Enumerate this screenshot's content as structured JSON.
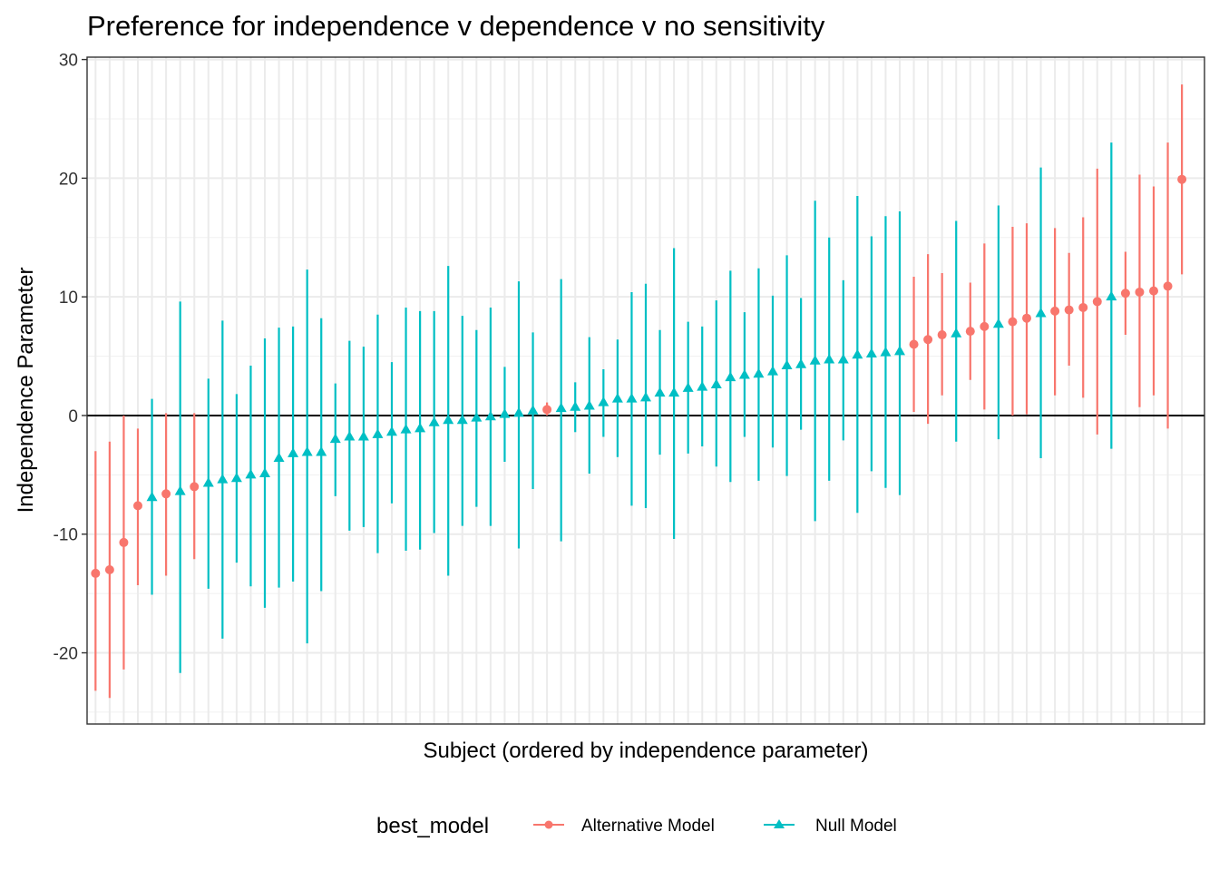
{
  "chart_data": {
    "type": "scatter",
    "title": "Preference for independence v dependence v no sensitivity",
    "xlabel": "Subject (ordered by independence parameter)",
    "ylabel": "Independence Parameter",
    "ylim": [
      -26,
      30.2
    ],
    "yticks": [
      -20,
      -10,
      0,
      10,
      20,
      30
    ],
    "ytick_labels": [
      "-20",
      "-10",
      "0",
      "10",
      "20",
      "30"
    ],
    "reference_line_y": 0,
    "grid": true,
    "legend": {
      "title": "best_model",
      "position": "bottom",
      "entries": [
        {
          "name": "Alternative Model",
          "color": "#F8766D",
          "shape": "circle"
        },
        {
          "name": "Null Model",
          "color": "#00BFC4",
          "shape": "triangle"
        }
      ]
    },
    "points": [
      {
        "subject": 1,
        "y": -13.3,
        "lo": -23.2,
        "hi": -3.0,
        "model": "Alternative Model"
      },
      {
        "subject": 2,
        "y": -13.0,
        "lo": -23.8,
        "hi": -2.2,
        "model": "Alternative Model"
      },
      {
        "subject": 3,
        "y": -10.7,
        "lo": -21.4,
        "hi": 0.0,
        "model": "Alternative Model"
      },
      {
        "subject": 4,
        "y": -7.6,
        "lo": -14.3,
        "hi": -1.1,
        "model": "Alternative Model"
      },
      {
        "subject": 5,
        "y": -6.9,
        "lo": -15.1,
        "hi": 1.4,
        "model": "Null Model"
      },
      {
        "subject": 6,
        "y": -6.6,
        "lo": -13.5,
        "hi": 0.2,
        "model": "Alternative Model"
      },
      {
        "subject": 7,
        "y": -6.4,
        "lo": -21.7,
        "hi": 9.6,
        "model": "Null Model"
      },
      {
        "subject": 8,
        "y": -6.0,
        "lo": -12.1,
        "hi": 0.2,
        "model": "Alternative Model"
      },
      {
        "subject": 9,
        "y": -5.7,
        "lo": -14.6,
        "hi": 3.1,
        "model": "Null Model"
      },
      {
        "subject": 10,
        "y": -5.4,
        "lo": -18.8,
        "hi": 8.0,
        "model": "Null Model"
      },
      {
        "subject": 11,
        "y": -5.3,
        "lo": -12.4,
        "hi": 1.8,
        "model": "Null Model"
      },
      {
        "subject": 12,
        "y": -5.0,
        "lo": -14.4,
        "hi": 4.2,
        "model": "Null Model"
      },
      {
        "subject": 13,
        "y": -4.9,
        "lo": -16.2,
        "hi": 6.5,
        "model": "Null Model"
      },
      {
        "subject": 14,
        "y": -3.6,
        "lo": -14.5,
        "hi": 7.4,
        "model": "Null Model"
      },
      {
        "subject": 15,
        "y": -3.2,
        "lo": -14.0,
        "hi": 7.5,
        "model": "Null Model"
      },
      {
        "subject": 16,
        "y": -3.1,
        "lo": -19.2,
        "hi": 12.3,
        "model": "Null Model"
      },
      {
        "subject": 17,
        "y": -3.1,
        "lo": -14.8,
        "hi": 8.2,
        "model": "Null Model"
      },
      {
        "subject": 18,
        "y": -2.0,
        "lo": -6.8,
        "hi": 2.7,
        "model": "Null Model"
      },
      {
        "subject": 19,
        "y": -1.8,
        "lo": -9.7,
        "hi": 6.3,
        "model": "Null Model"
      },
      {
        "subject": 20,
        "y": -1.8,
        "lo": -9.4,
        "hi": 5.8,
        "model": "Null Model"
      },
      {
        "subject": 21,
        "y": -1.6,
        "lo": -11.6,
        "hi": 8.5,
        "model": "Null Model"
      },
      {
        "subject": 22,
        "y": -1.4,
        "lo": -7.4,
        "hi": 4.5,
        "model": "Null Model"
      },
      {
        "subject": 23,
        "y": -1.2,
        "lo": -11.4,
        "hi": 9.1,
        "model": "Null Model"
      },
      {
        "subject": 24,
        "y": -1.1,
        "lo": -11.3,
        "hi": 8.8,
        "model": "Null Model"
      },
      {
        "subject": 25,
        "y": -0.6,
        "lo": -9.9,
        "hi": 8.8,
        "model": "Null Model"
      },
      {
        "subject": 26,
        "y": -0.4,
        "lo": -13.5,
        "hi": 12.6,
        "model": "Null Model"
      },
      {
        "subject": 27,
        "y": -0.4,
        "lo": -9.3,
        "hi": 8.4,
        "model": "Null Model"
      },
      {
        "subject": 28,
        "y": -0.2,
        "lo": -7.7,
        "hi": 7.2,
        "model": "Null Model"
      },
      {
        "subject": 29,
        "y": -0.1,
        "lo": -9.3,
        "hi": 9.1,
        "model": "Null Model"
      },
      {
        "subject": 30,
        "y": 0.1,
        "lo": -3.9,
        "hi": 4.1,
        "model": "Null Model"
      },
      {
        "subject": 31,
        "y": 0.2,
        "lo": -11.2,
        "hi": 11.3,
        "model": "Null Model"
      },
      {
        "subject": 32,
        "y": 0.4,
        "lo": -6.2,
        "hi": 7.0,
        "model": "Null Model"
      },
      {
        "subject": 33,
        "y": 0.5,
        "lo": 0.0,
        "hi": 1.1,
        "model": "Alternative Model"
      },
      {
        "subject": 34,
        "y": 0.6,
        "lo": -10.6,
        "hi": 11.5,
        "model": "Null Model"
      },
      {
        "subject": 35,
        "y": 0.7,
        "lo": -1.4,
        "hi": 2.8,
        "model": "Null Model"
      },
      {
        "subject": 36,
        "y": 0.8,
        "lo": -4.9,
        "hi": 6.6,
        "model": "Null Model"
      },
      {
        "subject": 37,
        "y": 1.1,
        "lo": -1.8,
        "hi": 3.9,
        "model": "Null Model"
      },
      {
        "subject": 38,
        "y": 1.4,
        "lo": -3.5,
        "hi": 6.4,
        "model": "Null Model"
      },
      {
        "subject": 39,
        "y": 1.4,
        "lo": -7.6,
        "hi": 10.4,
        "model": "Null Model"
      },
      {
        "subject": 40,
        "y": 1.5,
        "lo": -7.8,
        "hi": 11.1,
        "model": "Null Model"
      },
      {
        "subject": 41,
        "y": 1.9,
        "lo": -3.3,
        "hi": 7.2,
        "model": "Null Model"
      },
      {
        "subject": 42,
        "y": 1.9,
        "lo": -10.4,
        "hi": 14.1,
        "model": "Null Model"
      },
      {
        "subject": 43,
        "y": 2.3,
        "lo": -3.2,
        "hi": 7.9,
        "model": "Null Model"
      },
      {
        "subject": 44,
        "y": 2.4,
        "lo": -2.6,
        "hi": 7.5,
        "model": "Null Model"
      },
      {
        "subject": 45,
        "y": 2.6,
        "lo": -4.3,
        "hi": 9.7,
        "model": "Null Model"
      },
      {
        "subject": 46,
        "y": 3.2,
        "lo": -5.6,
        "hi": 12.2,
        "model": "Null Model"
      },
      {
        "subject": 47,
        "y": 3.4,
        "lo": -1.8,
        "hi": 8.7,
        "model": "Null Model"
      },
      {
        "subject": 48,
        "y": 3.5,
        "lo": -5.5,
        "hi": 12.4,
        "model": "Null Model"
      },
      {
        "subject": 49,
        "y": 3.7,
        "lo": -2.7,
        "hi": 10.1,
        "model": "Null Model"
      },
      {
        "subject": 50,
        "y": 4.2,
        "lo": -5.1,
        "hi": 13.5,
        "model": "Null Model"
      },
      {
        "subject": 51,
        "y": 4.3,
        "lo": -1.2,
        "hi": 9.9,
        "model": "Null Model"
      },
      {
        "subject": 52,
        "y": 4.6,
        "lo": -8.9,
        "hi": 18.1,
        "model": "Null Model"
      },
      {
        "subject": 53,
        "y": 4.7,
        "lo": -5.5,
        "hi": 15.0,
        "model": "Null Model"
      },
      {
        "subject": 54,
        "y": 4.7,
        "lo": -2.1,
        "hi": 11.4,
        "model": "Null Model"
      },
      {
        "subject": 55,
        "y": 5.1,
        "lo": -8.2,
        "hi": 18.5,
        "model": "Null Model"
      },
      {
        "subject": 56,
        "y": 5.2,
        "lo": -4.7,
        "hi": 15.1,
        "model": "Null Model"
      },
      {
        "subject": 57,
        "y": 5.3,
        "lo": -6.1,
        "hi": 16.8,
        "model": "Null Model"
      },
      {
        "subject": 58,
        "y": 5.4,
        "lo": -6.7,
        "hi": 17.2,
        "model": "Null Model"
      },
      {
        "subject": 59,
        "y": 6.0,
        "lo": 0.3,
        "hi": 11.7,
        "model": "Alternative Model"
      },
      {
        "subject": 60,
        "y": 6.4,
        "lo": -0.7,
        "hi": 13.6,
        "model": "Alternative Model"
      },
      {
        "subject": 61,
        "y": 6.8,
        "lo": 1.7,
        "hi": 12.0,
        "model": "Alternative Model"
      },
      {
        "subject": 62,
        "y": 6.9,
        "lo": -2.2,
        "hi": 16.4,
        "model": "Null Model"
      },
      {
        "subject": 63,
        "y": 7.1,
        "lo": 3.0,
        "hi": 11.2,
        "model": "Alternative Model"
      },
      {
        "subject": 64,
        "y": 7.5,
        "lo": 0.5,
        "hi": 14.5,
        "model": "Alternative Model"
      },
      {
        "subject": 65,
        "y": 7.7,
        "lo": -2.0,
        "hi": 17.7,
        "model": "Null Model"
      },
      {
        "subject": 66,
        "y": 7.9,
        "lo": 0.0,
        "hi": 15.9,
        "model": "Alternative Model"
      },
      {
        "subject": 67,
        "y": 8.2,
        "lo": 0.1,
        "hi": 16.2,
        "model": "Alternative Model"
      },
      {
        "subject": 68,
        "y": 8.6,
        "lo": -3.6,
        "hi": 20.9,
        "model": "Null Model"
      },
      {
        "subject": 69,
        "y": 8.8,
        "lo": 1.7,
        "hi": 15.8,
        "model": "Alternative Model"
      },
      {
        "subject": 70,
        "y": 8.9,
        "lo": 4.2,
        "hi": 13.7,
        "model": "Alternative Model"
      },
      {
        "subject": 71,
        "y": 9.1,
        "lo": 1.5,
        "hi": 16.7,
        "model": "Alternative Model"
      },
      {
        "subject": 72,
        "y": 9.6,
        "lo": -1.6,
        "hi": 20.8,
        "model": "Alternative Model"
      },
      {
        "subject": 73,
        "y": 10.0,
        "lo": -2.8,
        "hi": 23.0,
        "model": "Null Model"
      },
      {
        "subject": 74,
        "y": 10.3,
        "lo": 6.8,
        "hi": 13.8,
        "model": "Alternative Model"
      },
      {
        "subject": 75,
        "y": 10.4,
        "lo": 0.7,
        "hi": 20.3,
        "model": "Alternative Model"
      },
      {
        "subject": 76,
        "y": 10.5,
        "lo": 1.7,
        "hi": 19.3,
        "model": "Alternative Model"
      },
      {
        "subject": 77,
        "y": 10.9,
        "lo": -1.1,
        "hi": 23.0,
        "model": "Alternative Model"
      },
      {
        "subject": 78,
        "y": 19.9,
        "lo": 11.9,
        "hi": 27.9,
        "model": "Alternative Model"
      }
    ]
  }
}
